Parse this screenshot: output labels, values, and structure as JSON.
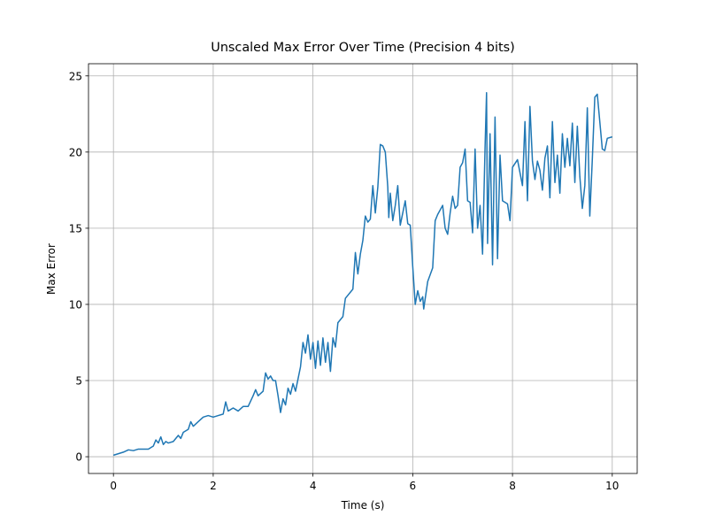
{
  "chart_data": {
    "type": "line",
    "title": "Unscaled Max Error Over Time (Precision 4 bits)",
    "x_label": "Time (s)",
    "y_label": "Max Error",
    "x": [
      0,
      0.1,
      0.2,
      0.3,
      0.4,
      0.5,
      0.6,
      0.7,
      0.8,
      0.85,
      0.9,
      0.95,
      1.0,
      1.05,
      1.1,
      1.2,
      1.3,
      1.35,
      1.4,
      1.5,
      1.55,
      1.6,
      1.7,
      1.8,
      1.9,
      2.0,
      2.1,
      2.2,
      2.25,
      2.3,
      2.4,
      2.5,
      2.6,
      2.7,
      2.8,
      2.85,
      2.9,
      3.0,
      3.05,
      3.1,
      3.15,
      3.2,
      3.25,
      3.3,
      3.35,
      3.4,
      3.45,
      3.5,
      3.55,
      3.6,
      3.65,
      3.7,
      3.75,
      3.8,
      3.85,
      3.9,
      3.95,
      4.0,
      4.05,
      4.1,
      4.15,
      4.2,
      4.25,
      4.3,
      4.35,
      4.4,
      4.45,
      4.5,
      4.6,
      4.65,
      4.8,
      4.85,
      4.9,
      4.95,
      5.0,
      5.05,
      5.1,
      5.15,
      5.2,
      5.25,
      5.3,
      5.35,
      5.4,
      5.45,
      5.5,
      5.52,
      5.55,
      5.6,
      5.65,
      5.7,
      5.75,
      5.8,
      5.85,
      5.9,
      5.95,
      6.0,
      6.05,
      6.1,
      6.15,
      6.2,
      6.22,
      6.3,
      6.4,
      6.45,
      6.5,
      6.6,
      6.65,
      6.7,
      6.75,
      6.8,
      6.85,
      6.9,
      6.95,
      7.0,
      7.05,
      7.1,
      7.15,
      7.2,
      7.25,
      7.3,
      7.35,
      7.4,
      7.45,
      7.48,
      7.5,
      7.55,
      7.6,
      7.65,
      7.7,
      7.75,
      7.8,
      7.9,
      7.95,
      8.0,
      8.1,
      8.2,
      8.25,
      8.3,
      8.35,
      8.4,
      8.45,
      8.5,
      8.55,
      8.6,
      8.65,
      8.7,
      8.75,
      8.8,
      8.85,
      8.9,
      8.95,
      9.0,
      9.05,
      9.1,
      9.15,
      9.2,
      9.25,
      9.3,
      9.35,
      9.4,
      9.45,
      9.5,
      9.55,
      9.6,
      9.65,
      9.7,
      9.75,
      9.8,
      9.85,
      9.9,
      10.0
    ],
    "series": [
      {
        "name": "Max Error",
        "color": "#1f77b4",
        "values": [
          0.1,
          0.2,
          0.3,
          0.45,
          0.4,
          0.5,
          0.5,
          0.5,
          0.7,
          1.1,
          0.9,
          1.3,
          0.8,
          1.0,
          0.9,
          1.0,
          1.4,
          1.2,
          1.6,
          1.8,
          2.3,
          2.0,
          2.3,
          2.6,
          2.7,
          2.6,
          2.7,
          2.8,
          3.6,
          3.0,
          3.2,
          3.0,
          3.3,
          3.3,
          4.0,
          4.4,
          4.0,
          4.3,
          5.5,
          5.1,
          5.3,
          5.0,
          5.0,
          4.0,
          2.9,
          3.8,
          3.4,
          4.5,
          4.1,
          4.8,
          4.3,
          5.1,
          5.9,
          7.5,
          6.8,
          8.0,
          6.4,
          7.5,
          5.8,
          7.6,
          6.0,
          7.8,
          6.2,
          7.5,
          5.6,
          7.8,
          7.2,
          8.8,
          9.2,
          10.4,
          11.0,
          13.4,
          12.0,
          13.3,
          14.2,
          15.8,
          15.4,
          15.6,
          17.8,
          16.0,
          17.7,
          20.5,
          20.4,
          20.0,
          17.7,
          15.7,
          17.3,
          15.5,
          16.5,
          17.8,
          15.2,
          16.0,
          16.8,
          15.3,
          15.2,
          12.5,
          10.0,
          10.9,
          10.2,
          10.5,
          9.7,
          11.5,
          12.4,
          15.5,
          15.9,
          16.5,
          15.0,
          14.6,
          16.0,
          17.1,
          16.3,
          16.5,
          19.0,
          19.3,
          20.2,
          16.8,
          16.7,
          14.7,
          20.2,
          15.0,
          16.5,
          13.3,
          20.3,
          23.9,
          14.0,
          21.2,
          12.6,
          22.3,
          13.0,
          19.8,
          16.8,
          16.6,
          15.5,
          19.0,
          19.5,
          17.8,
          22.0,
          16.8,
          23.0,
          19.4,
          18.2,
          19.4,
          18.8,
          17.5,
          19.6,
          20.4,
          17.0,
          22.0,
          18.0,
          19.8,
          17.3,
          21.2,
          19.0,
          20.9,
          19.1,
          21.9,
          18.0,
          21.7,
          18.4,
          16.3,
          17.8,
          22.9,
          15.8,
          19.5,
          23.6,
          23.8,
          22.0,
          20.2,
          20.1,
          20.9,
          21.0
        ]
      }
    ],
    "xlim": [
      -0.5,
      10.5
    ],
    "ylim": [
      -1.1,
      25.8
    ],
    "xticks": [
      0,
      2,
      4,
      6,
      8,
      10
    ],
    "yticks": [
      0,
      5,
      10,
      15,
      20,
      25
    ],
    "grid": true
  }
}
